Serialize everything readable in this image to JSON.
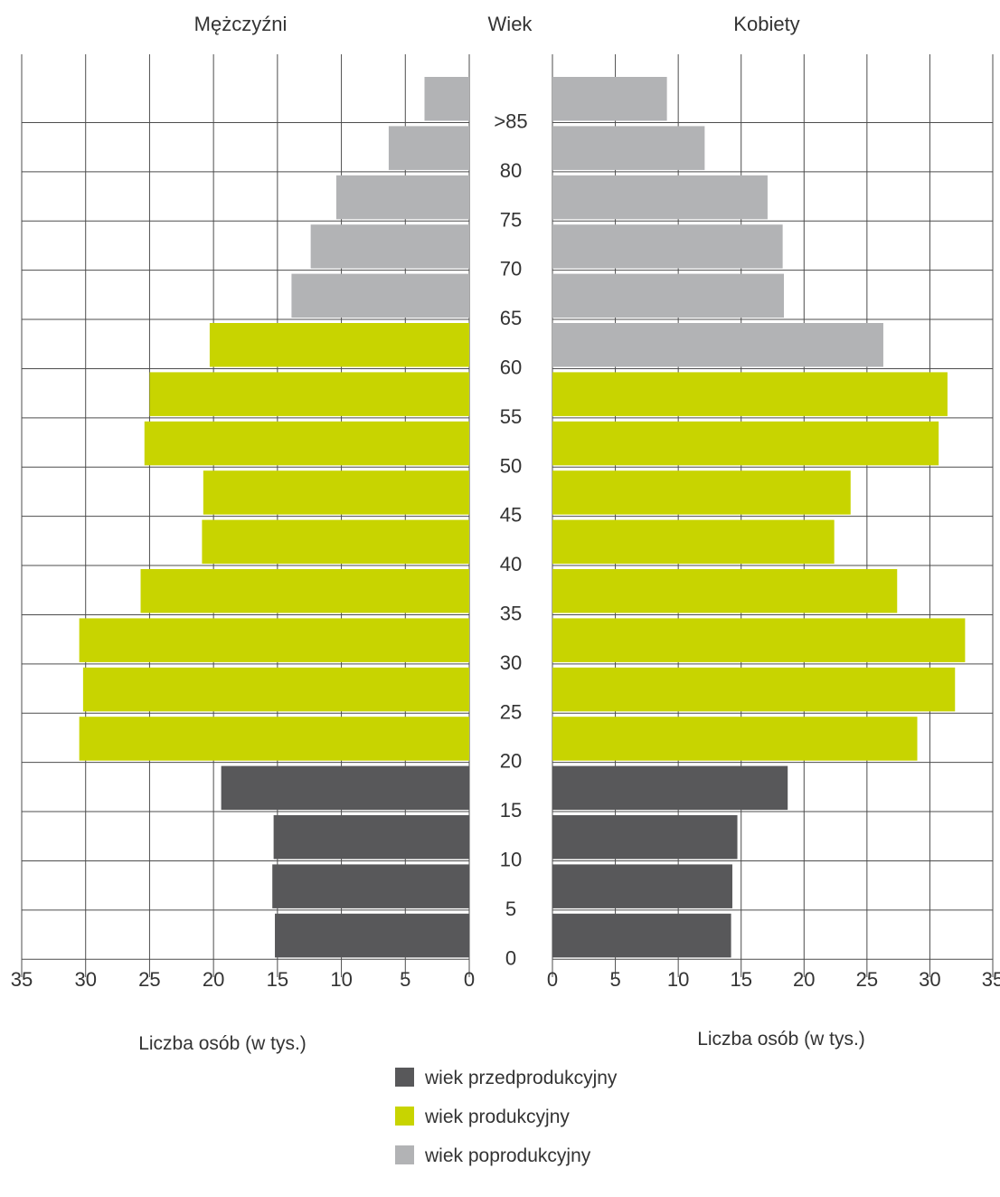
{
  "chart_data": {
    "type": "bar",
    "subtype": "population-pyramid",
    "title": "",
    "left_title": "Mężczyźni",
    "center_title": "Wiek",
    "right_title": "Kobiety",
    "xlabel_left": "Liczba osób (w tys.)",
    "xlabel_right": "Liczba osób (w tys.)",
    "xlim": [
      0,
      35
    ],
    "x_ticks": [
      "0",
      "5",
      "10",
      "15",
      "20",
      "25",
      "30",
      "35"
    ],
    "age_labels": [
      ">85",
      "80",
      "75",
      "70",
      "65",
      "60",
      "55",
      "50",
      "45",
      "40",
      "35",
      "30",
      "25",
      "20",
      "15",
      "10",
      "5",
      "0"
    ],
    "categories": [
      "85+",
      "80-84",
      "75-79",
      "70-74",
      "65-69",
      "60-64",
      "55-59",
      "50-54",
      "45-49",
      "40-44",
      "35-39",
      "30-34",
      "25-29",
      "20-24",
      "15-19",
      "10-14",
      "5-9",
      "0-4"
    ],
    "series": [
      {
        "side": "left",
        "values": [
          3.5,
          6.3,
          10.4,
          12.4,
          13.9,
          20.3,
          25.0,
          25.4,
          20.8,
          20.9,
          25.7,
          30.5,
          30.2,
          30.5,
          19.4,
          15.3,
          15.4,
          15.2
        ]
      },
      {
        "side": "right",
        "values": [
          9.1,
          12.1,
          17.1,
          18.3,
          18.4,
          26.3,
          31.4,
          30.7,
          23.7,
          22.4,
          27.4,
          32.8,
          32.0,
          29.0,
          18.7,
          14.7,
          14.3,
          14.2
        ]
      }
    ],
    "group_colors": {
      "pre": "#58585a",
      "working": "#c8d400",
      "post": "#b2b3b5"
    },
    "bar_groups": [
      "post",
      "post",
      "post",
      "post",
      "post",
      "post",
      "working",
      "working",
      "working",
      "working",
      "working",
      "working",
      "working",
      "working",
      "pre",
      "pre",
      "pre",
      "pre"
    ],
    "bar_groups_female": [
      "post",
      "post",
      "post",
      "post",
      "post",
      "post",
      "working",
      "working",
      "working",
      "working",
      "working",
      "working",
      "working",
      "working",
      "pre",
      "pre",
      "pre",
      "pre"
    ],
    "bar_groups_male": [
      "post",
      "post",
      "post",
      "post",
      "post",
      "working",
      "working",
      "working",
      "working",
      "working",
      "working",
      "working",
      "working",
      "working",
      "pre",
      "pre",
      "pre",
      "pre"
    ],
    "legend": [
      {
        "label": "wiek przedprodukcyjny",
        "color": "#58585a"
      },
      {
        "label": "wiek produkcyjny",
        "color": "#c8d400"
      },
      {
        "label": "wiek poprodukcyjny",
        "color": "#b2b3b5"
      }
    ],
    "legend_position": "bottom-center",
    "grid": true
  }
}
